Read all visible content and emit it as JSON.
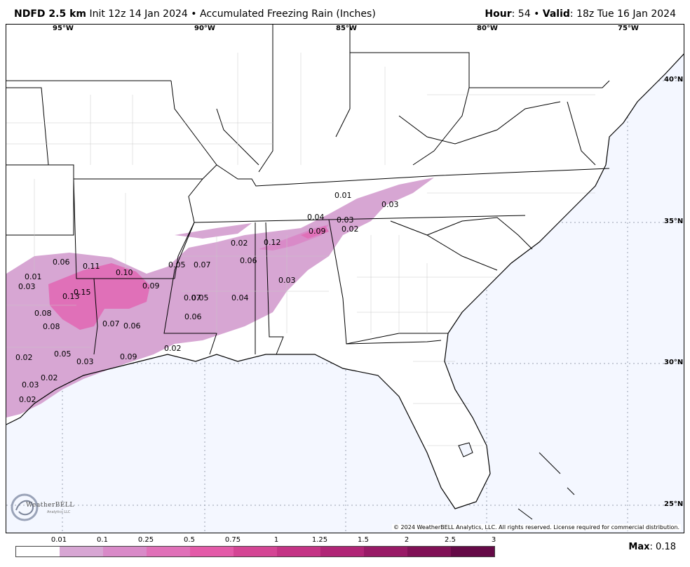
{
  "header": {
    "product": "NDFD 2.5 km",
    "init": "Init 12z 14 Jan 2024",
    "bullet": "•",
    "field": "Accumulated Freezing Rain (Inches)",
    "hour_label": "Hour",
    "hour_value": ": 54",
    "valid_label": "Valid",
    "valid_value": ": 18z Tue 16 Jan 2024"
  },
  "map": {
    "longitudes": [
      "95°W",
      "90°W",
      "85°W",
      "80°W",
      "75°W"
    ],
    "latitudes": [
      "40°N",
      "35°N",
      "30°N",
      "25°N"
    ],
    "copyright": "© 2024 WeatherBELL Analytics, LLC. All rights reserved. License required for commercial distribution.",
    "logo_text": "WeatherBELL",
    "logo_subtext": "Analytics LLC",
    "ice_labels": [
      "0.01",
      "0.03",
      "0.04",
      "0.03",
      "0.02",
      "0.09",
      "0.02",
      "0.12",
      "0.06",
      "0.11",
      "0.10",
      "0.01",
      "0.03",
      "0.15",
      "0.13",
      "0.09",
      "0.05",
      "0.07",
      "0.06",
      "0.03",
      "0.07",
      "0.05",
      "0.04",
      "0.08",
      "0.08",
      "0.07",
      "0.06",
      "0.06",
      "0.02",
      "0.02",
      "0.05",
      "0.09",
      "0.03",
      "0.02",
      "0.03",
      "0.02"
    ]
  },
  "legend": {
    "ticks": [
      "0.01",
      "0.1",
      "0.25",
      "0.5",
      "0.75",
      "1",
      "1.25",
      "1.5",
      "2",
      "2.5",
      "3"
    ],
    "colors": [
      "#ffffff",
      "#d7a6d3",
      "#d98ac8",
      "#e070b8",
      "#e35aa8",
      "#d44594",
      "#c43485",
      "#b02576",
      "#981a66",
      "#801156",
      "#650a47"
    ],
    "max_label": "Max",
    "max_value": ": 0.18"
  }
}
